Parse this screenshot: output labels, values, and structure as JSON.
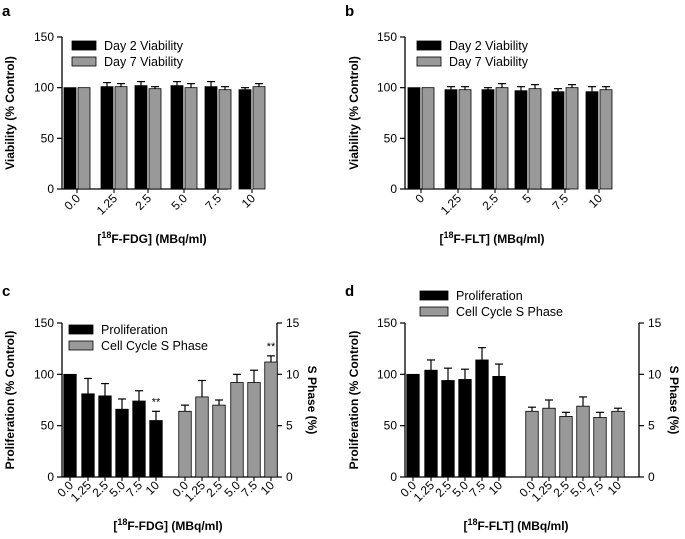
{
  "colors": {
    "black_bar": "#000000",
    "gray_bar": "#999999",
    "axis": "#000000"
  },
  "chart_data": [
    {
      "panel": "a",
      "type": "bar",
      "ylabel": "Viability (% Control)",
      "xlabel_main": "F-FDG] (MBq/ml)",
      "xlabel_prefix": "[",
      "xlabel_sup": "18",
      "ylim": [
        0,
        150
      ],
      "yticks": [
        "0",
        "50",
        "100",
        "150"
      ],
      "categories": [
        "0.0",
        "1.25",
        "2.5",
        "5.0",
        "7.5",
        "10"
      ],
      "series": [
        {
          "name": "Day 2 Viability",
          "color": "black",
          "values": [
            100,
            101,
            102,
            102,
            101,
            98
          ],
          "errors": [
            0,
            4,
            4,
            4,
            5,
            2
          ]
        },
        {
          "name": "Day 7 Viability",
          "color": "gray",
          "values": [
            100,
            101,
            99,
            100,
            98,
            101
          ],
          "errors": [
            0,
            3,
            2,
            4,
            3,
            3
          ]
        }
      ],
      "legend": "top-left",
      "annotations": []
    },
    {
      "panel": "b",
      "type": "bar",
      "ylabel": "Viability (% Control)",
      "xlabel_main": "F-FLT] (MBq/ml)",
      "xlabel_prefix": "[",
      "xlabel_sup": "18",
      "ylim": [
        0,
        150
      ],
      "yticks": [
        "0",
        "50",
        "100",
        "150"
      ],
      "categories": [
        "0",
        "1.25",
        "2.5",
        "5",
        "7.5",
        "10"
      ],
      "series": [
        {
          "name": "Day 2 Viability",
          "color": "black",
          "values": [
            100,
            98,
            98,
            97,
            96,
            96
          ],
          "errors": [
            0,
            3,
            2,
            4,
            3,
            5
          ]
        },
        {
          "name": "Day 7 Viability",
          "color": "gray",
          "values": [
            100,
            98,
            100,
            99,
            100,
            98
          ],
          "errors": [
            0,
            3,
            4,
            4,
            3,
            3
          ]
        }
      ],
      "legend": "top-left",
      "annotations": []
    },
    {
      "panel": "c",
      "type": "bar",
      "ylabel": "Proliferation (% Control)",
      "ylabel_right": "S Phase (%)",
      "xlabel_main": "F-FDG] (MBq/ml)",
      "xlabel_prefix": "[",
      "xlabel_sup": "18",
      "ylim": [
        0,
        150
      ],
      "ylim_right": [
        0,
        15
      ],
      "yticks": [
        "0",
        "50",
        "100",
        "150"
      ],
      "yticks_right": [
        "0",
        "5",
        "10",
        "15"
      ],
      "categories": [
        "0.0",
        "1.25",
        "2.5",
        "5.0",
        "7.5",
        "10"
      ],
      "series": [
        {
          "name": "Proliferation",
          "color": "black",
          "axis": "left",
          "values": [
            100,
            81,
            79,
            66,
            74,
            55
          ],
          "errors": [
            0,
            15,
            12,
            10,
            10,
            9
          ]
        },
        {
          "name": "Cell Cycle S Phase",
          "color": "gray",
          "axis": "right",
          "values": [
            6.4,
            7.8,
            7.0,
            9.2,
            9.2,
            11.2
          ],
          "errors": [
            0.6,
            1.6,
            0.5,
            0.8,
            1.2,
            0.6
          ]
        }
      ],
      "legend": "top-left",
      "annotations": [
        {
          "text": "**",
          "series": 0,
          "category": "10"
        },
        {
          "text": "**",
          "series": 1,
          "category": "10"
        }
      ]
    },
    {
      "panel": "d",
      "type": "bar",
      "ylabel": "Proliferation (% Control)",
      "ylabel_right": "S Phase (%)",
      "xlabel_main": "F-FLT] (MBq/ml)",
      "xlabel_prefix": "[",
      "xlabel_sup": "18",
      "ylim": [
        0,
        150
      ],
      "ylim_right": [
        0,
        15
      ],
      "yticks": [
        "0",
        "50",
        "100",
        "150"
      ],
      "yticks_right": [
        "0",
        "5",
        "10",
        "15"
      ],
      "categories": [
        "0.0",
        "1.25",
        "2.5",
        "5.0",
        "7.5",
        "10"
      ],
      "series": [
        {
          "name": "Proliferation",
          "color": "black",
          "axis": "left",
          "values": [
            100,
            104,
            94,
            95,
            114,
            98
          ],
          "errors": [
            0,
            10,
            12,
            10,
            12,
            12
          ]
        },
        {
          "name": "Cell Cycle S Phase",
          "color": "gray",
          "axis": "right",
          "values": [
            6.4,
            6.7,
            5.9,
            6.9,
            5.8,
            6.4
          ],
          "errors": [
            0.4,
            0.8,
            0.4,
            0.9,
            0.5,
            0.3
          ]
        }
      ],
      "legend": "above",
      "annotations": []
    }
  ]
}
